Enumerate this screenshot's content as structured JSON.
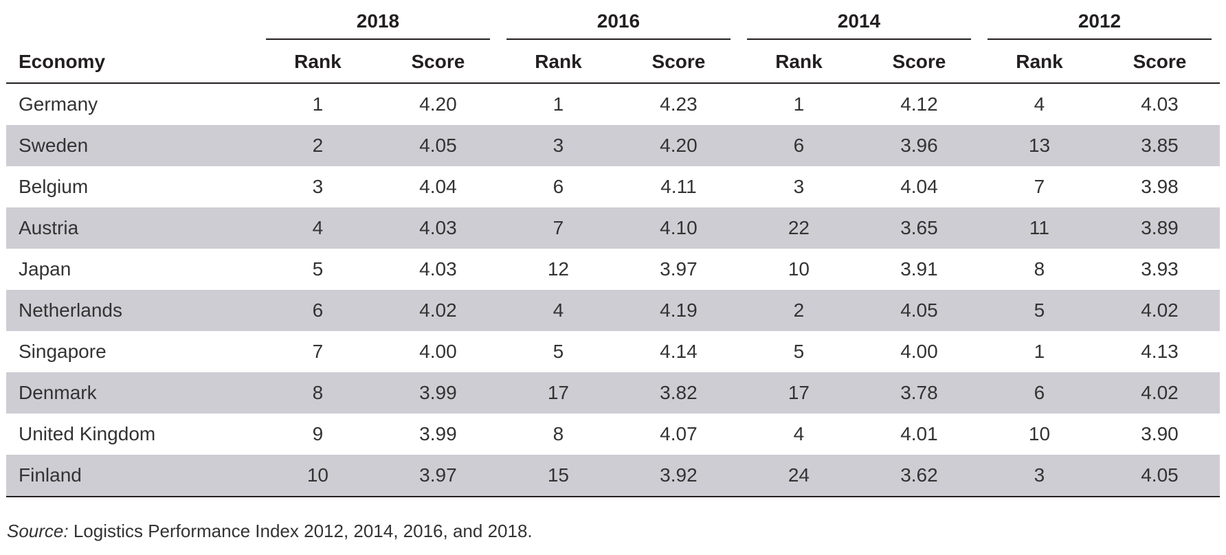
{
  "header": {
    "economy_label": "Economy",
    "rank_label": "Rank",
    "score_label": "Score",
    "years": [
      "2018",
      "2016",
      "2014",
      "2012"
    ]
  },
  "rows": [
    {
      "economy": "Germany",
      "values": [
        "1",
        "4.20",
        "1",
        "4.23",
        "1",
        "4.12",
        "4",
        "4.03"
      ]
    },
    {
      "economy": "Sweden",
      "values": [
        "2",
        "4.05",
        "3",
        "4.20",
        "6",
        "3.96",
        "13",
        "3.85"
      ]
    },
    {
      "economy": "Belgium",
      "values": [
        "3",
        "4.04",
        "6",
        "4.11",
        "3",
        "4.04",
        "7",
        "3.98"
      ]
    },
    {
      "economy": "Austria",
      "values": [
        "4",
        "4.03",
        "7",
        "4.10",
        "22",
        "3.65",
        "11",
        "3.89"
      ]
    },
    {
      "economy": "Japan",
      "values": [
        "5",
        "4.03",
        "12",
        "3.97",
        "10",
        "3.91",
        "8",
        "3.93"
      ]
    },
    {
      "economy": "Netherlands",
      "values": [
        "6",
        "4.02",
        "4",
        "4.19",
        "2",
        "4.05",
        "5",
        "4.02"
      ]
    },
    {
      "economy": "Singapore",
      "values": [
        "7",
        "4.00",
        "5",
        "4.14",
        "5",
        "4.00",
        "1",
        "4.13"
      ]
    },
    {
      "economy": "Denmark",
      "values": [
        "8",
        "3.99",
        "17",
        "3.82",
        "17",
        "3.78",
        "6",
        "4.02"
      ]
    },
    {
      "economy": "United Kingdom",
      "values": [
        "9",
        "3.99",
        "8",
        "4.07",
        "4",
        "4.01",
        "10",
        "3.90"
      ]
    },
    {
      "economy": "Finland",
      "values": [
        "10",
        "3.97",
        "15",
        "3.92",
        "24",
        "3.62",
        "3",
        "4.05"
      ]
    }
  ],
  "source": {
    "label": "Source:",
    "text": " Logistics Performance Index 2012, 2014, 2016, and 2018."
  }
}
